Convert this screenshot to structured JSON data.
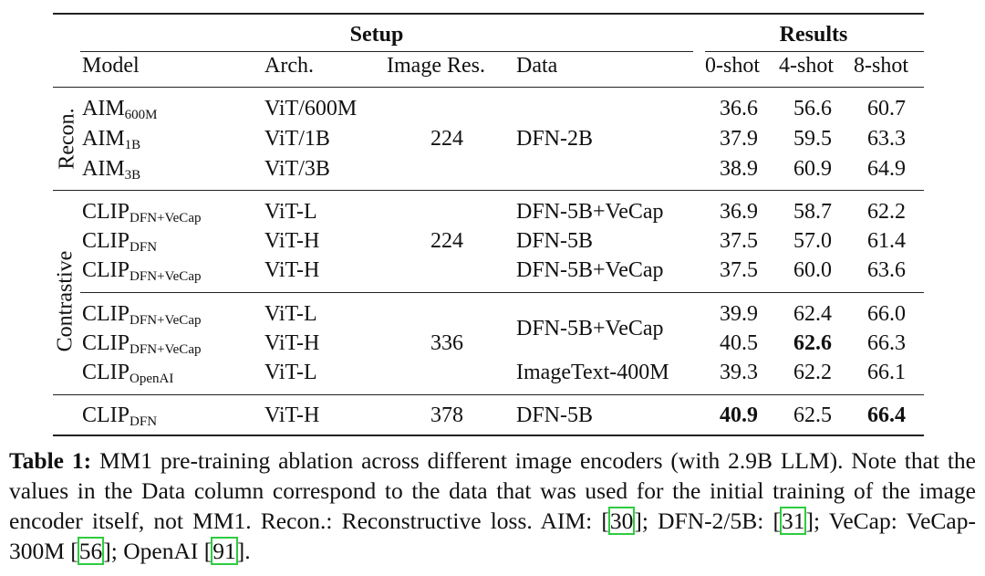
{
  "table": {
    "header_groups": [
      "Setup",
      "Results"
    ],
    "columns": [
      "Model",
      "Arch.",
      "Image Res.",
      "Data",
      "0-shot",
      "4-shot",
      "8-shot"
    ],
    "row_groups": [
      "Recon.",
      "Contrastive"
    ],
    "blocks": [
      {
        "image_res": "224",
        "data": [
          "DFN-2B"
        ],
        "rows": [
          {
            "model": "AIM",
            "sub": "600M",
            "arch": "ViT/600M",
            "scores": [
              "36.6",
              "56.6",
              "60.7"
            ]
          },
          {
            "model": "AIM",
            "sub": "1B",
            "arch": "ViT/1B",
            "scores": [
              "37.9",
              "59.5",
              "63.3"
            ]
          },
          {
            "model": "AIM",
            "sub": "3B",
            "arch": "ViT/3B",
            "scores": [
              "38.9",
              "60.9",
              "64.9"
            ]
          }
        ]
      },
      {
        "image_res": "224",
        "data": [
          "DFN-5B+VeCap",
          "DFN-5B",
          "DFN-5B+VeCap"
        ],
        "rows": [
          {
            "model": "CLIP",
            "sub": "DFN+VeCap",
            "arch": "ViT-L",
            "scores": [
              "36.9",
              "58.7",
              "62.2"
            ]
          },
          {
            "model": "CLIP",
            "sub": "DFN",
            "arch": "ViT-H",
            "scores": [
              "37.5",
              "57.0",
              "61.4"
            ]
          },
          {
            "model": "CLIP",
            "sub": "DFN+VeCap",
            "arch": "ViT-H",
            "scores": [
              "37.5",
              "60.0",
              "63.6"
            ]
          }
        ]
      },
      {
        "image_res": "336",
        "data": [
          "DFN-5B+VeCap",
          "ImageText-400M"
        ],
        "rows": [
          {
            "model": "CLIP",
            "sub": "DFN+VeCap",
            "arch": "ViT-L",
            "scores": [
              "39.9",
              "62.4",
              "66.0"
            ]
          },
          {
            "model": "CLIP",
            "sub": "DFN+VeCap",
            "arch": "ViT-H",
            "scores": [
              "40.5",
              "62.6",
              "66.3"
            ],
            "bold": [
              false,
              true,
              false
            ]
          },
          {
            "model": "CLIP",
            "sub": "OpenAI",
            "arch": "ViT-L",
            "scores": [
              "39.3",
              "62.2",
              "66.1"
            ]
          }
        ]
      },
      {
        "image_res": "378",
        "data": [
          "DFN-5B"
        ],
        "rows": [
          {
            "model": "CLIP",
            "sub": "DFN",
            "arch": "ViT-H",
            "scores": [
              "40.9",
              "62.5",
              "66.4"
            ],
            "bold": [
              true,
              false,
              true
            ]
          }
        ]
      }
    ]
  },
  "caption": {
    "label": "Table 1:",
    "text": [
      " MM1 pre-training ablation across different image encoders (with 2.9B LLM). Note that the values in the Data column correspond to the data that was used for the initial training of the image encoder itself, not MM1. Recon.: Reconstructive loss. AIM: [",
      "]; DFN-2/5B: [",
      "]; VeCap: VeCap-300M [",
      "]; OpenAI [",
      "]."
    ],
    "citations": [
      "30",
      "31",
      "56",
      "91"
    ]
  }
}
